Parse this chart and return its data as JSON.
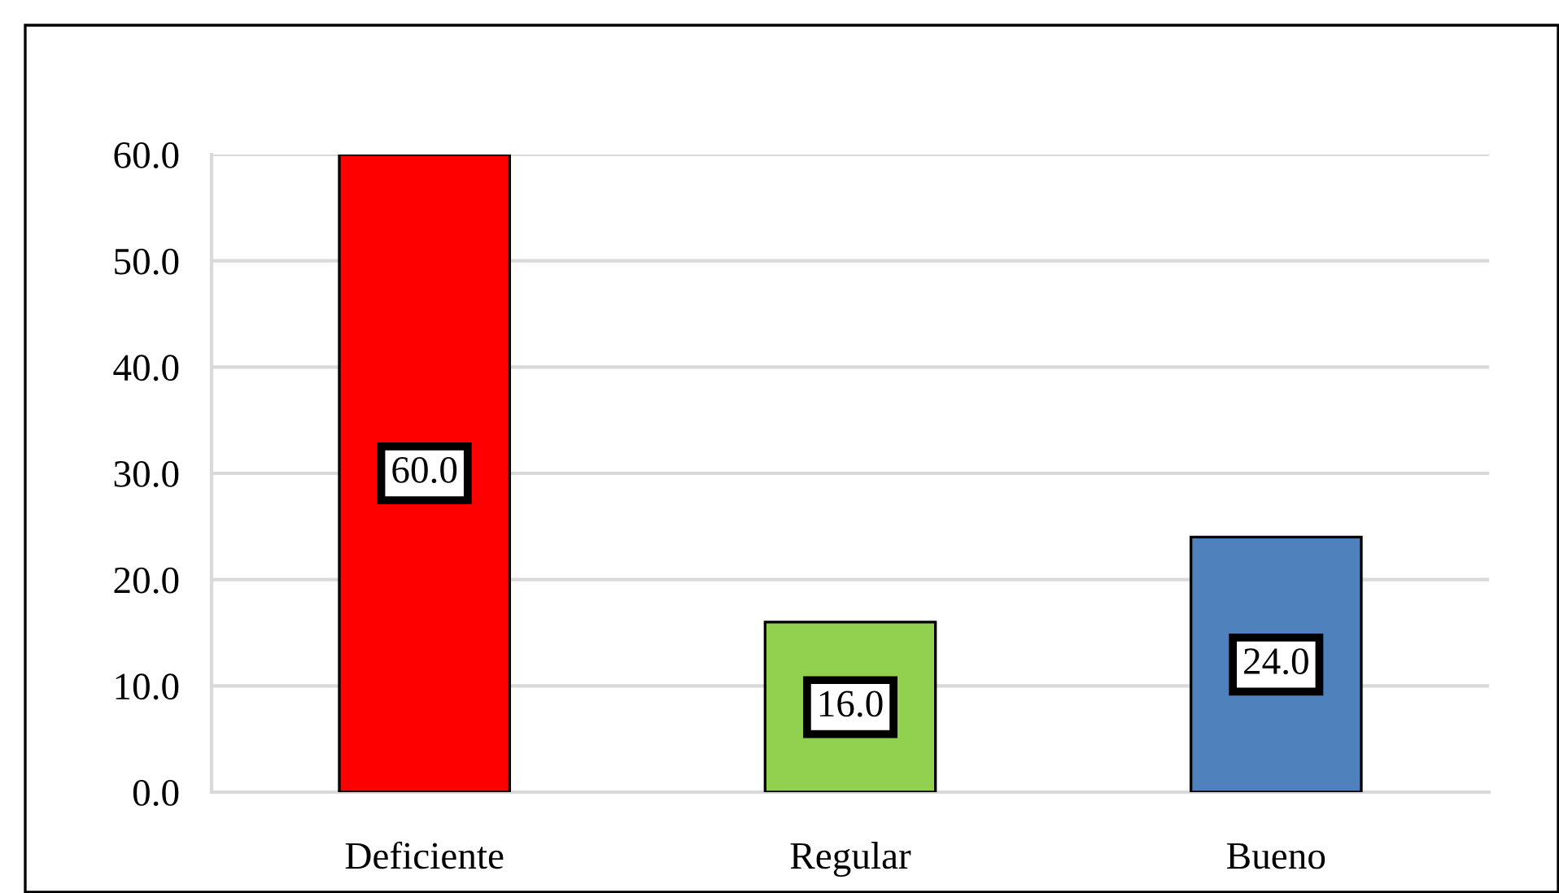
{
  "chart_data": {
    "type": "bar",
    "categories": [
      "Deficiente",
      "Regular",
      "Bueno"
    ],
    "values": [
      60.0,
      16.0,
      24.0
    ],
    "colors": [
      "#ff0000",
      "#92d050",
      "#4f81bd"
    ],
    "value_labels": [
      "60.0",
      "16.0",
      "24.0"
    ],
    "ylim": [
      0,
      60
    ],
    "yticks": [
      {
        "value": 0,
        "label": "0.0"
      },
      {
        "value": 10,
        "label": "10.0"
      },
      {
        "value": 20,
        "label": "20.0"
      },
      {
        "value": 30,
        "label": "30.0"
      },
      {
        "value": 40,
        "label": "40.0"
      },
      {
        "value": 50,
        "label": "50.0"
      },
      {
        "value": 60,
        "label": "60.0"
      }
    ],
    "grid": "y"
  }
}
